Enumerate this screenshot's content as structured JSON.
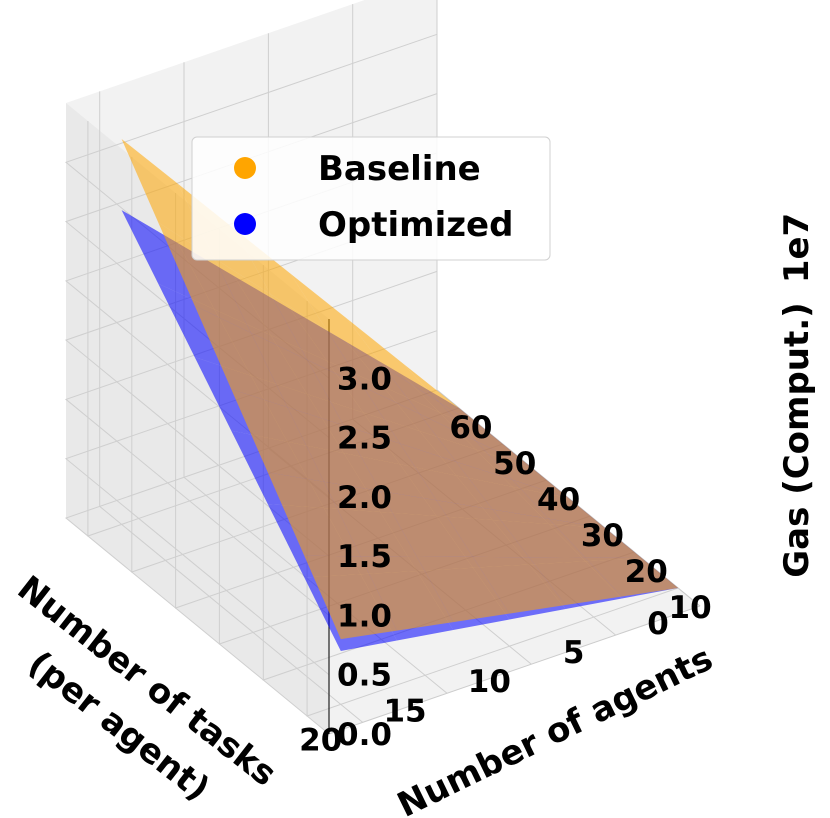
{
  "chart_data": {
    "type": "surface3d",
    "title": "",
    "x": {
      "label": "Number of agents",
      "values": [
        10,
        20,
        30,
        40,
        50,
        60
      ],
      "ticks": [
        "10",
        "20",
        "30",
        "40",
        "50",
        "60"
      ],
      "range": [
        5,
        65
      ]
    },
    "y": {
      "label_lines": [
        "Number of tasks",
        "(per agent)"
      ],
      "values": [
        0,
        5,
        10,
        15,
        20
      ],
      "ticks": [
        "0",
        "5",
        "10",
        "15",
        "20"
      ],
      "range": [
        0,
        22
      ]
    },
    "z": {
      "label": "Gas (Comput.)",
      "offset_text": "1e7",
      "ticks": [
        "0.0",
        "0.5",
        "1.0",
        "1.5",
        "2.0",
        "2.5",
        "3.0"
      ],
      "tick_values": [
        0.0,
        0.5,
        1.0,
        1.5,
        2.0,
        2.5,
        3.0
      ],
      "range": [
        0,
        3.5
      ]
    },
    "series": [
      {
        "name": "Baseline",
        "color": "#FFA500",
        "corners": {
          "agents_10_tasks_0": 0.0,
          "agents_60_tasks_0": 0.0,
          "agents_10_tasks_20": 0.55,
          "agents_60_tasks_20": 3.25
        }
      },
      {
        "name": "Optimized",
        "color": "#0000FF",
        "corners": {
          "agents_10_tasks_0": 0.0,
          "agents_60_tasks_0": 0.0,
          "agents_10_tasks_20": 0.45,
          "agents_60_tasks_20": 2.65
        }
      }
    ],
    "grid": true,
    "legend_position": "upper-left"
  }
}
